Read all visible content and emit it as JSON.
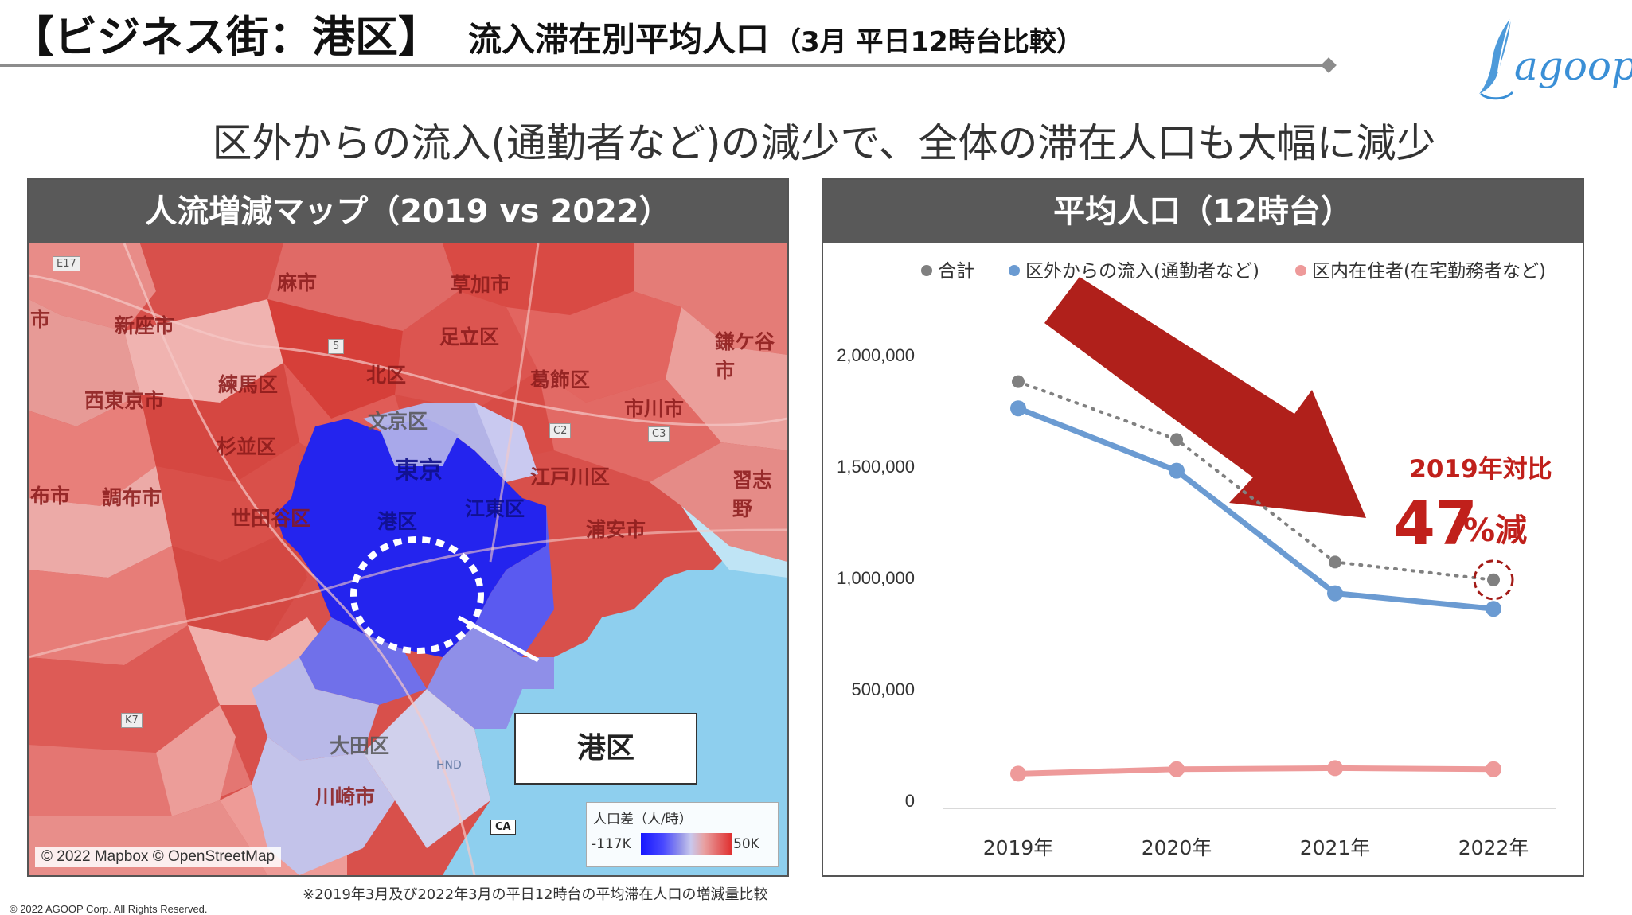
{
  "header": {
    "bracket_title": "【ビジネス街：港区】",
    "main_title": "流入滞在別平均人口",
    "sub_title": "（3月 平日12時台比較）",
    "logo_text": "agoop"
  },
  "headline": "区外からの流入(通勤者など)の減少で、全体の滞在人口も大幅に減少",
  "map_panel": {
    "title": "人流増減マップ（2019 vs 2022）",
    "labels": [
      "草加市",
      "足立区",
      "新座市",
      "北区",
      "葛飾区",
      "練馬区",
      "西東京市",
      "文京区",
      "市川市",
      "杉並区",
      "東京",
      "江戸川区",
      "調布市",
      "世田谷区",
      "港区",
      "江東区",
      "浦安市",
      "大田区",
      "川崎市",
      "鎌ケ谷市",
      "習志野",
      "麻市",
      "市",
      "布市"
    ],
    "road_labels": [
      "E17",
      "5",
      "C2",
      "C3",
      "K7",
      "CA"
    ],
    "airport_label": "HND",
    "callout": "港区",
    "legend_title": "人口差（人/時）",
    "legend_min": "-117K",
    "legend_max": "50K",
    "attribution": "© 2022 Mapbox © OpenStreetMap",
    "colors": {
      "increase": "#d9453f",
      "decrease": "#2a2ae6",
      "sea": "#8ecfee"
    }
  },
  "chart_panel": {
    "title": "平均人口（12時台）"
  },
  "chart_data": {
    "type": "line",
    "x": [
      "2019年",
      "2020年",
      "2021年",
      "2022年"
    ],
    "series": [
      {
        "name": "合計",
        "values": [
          1880000,
          1620000,
          1070000,
          990000
        ],
        "color": "#808080",
        "style": "dotted"
      },
      {
        "name": "区外からの流入(通勤者など)",
        "values": [
          1760000,
          1480000,
          930000,
          860000
        ],
        "color": "#6b9bd2",
        "style": "solid"
      },
      {
        "name": "区内在住者(在宅勤務者など)",
        "values": [
          120000,
          140000,
          145000,
          140000
        ],
        "color": "#ee9a9a",
        "style": "solid"
      }
    ],
    "y_ticks": [
      "2,000,000",
      "1,500,000",
      "1,000,000",
      "500,000",
      "0"
    ],
    "y_tick_values": [
      2000000,
      1500000,
      1000000,
      500000,
      0
    ],
    "ylim": [
      0,
      2000000
    ],
    "legend_position": "top",
    "annotation": {
      "line1": "2019年対比",
      "big": "47",
      "unit": "%減",
      "color": "#c0201b"
    }
  },
  "footnote": "※2019年3月及び2022年3月の平日12時台の平均滞在人口の増減量比較",
  "copyright": "© 2022 AGOOP Corp. All Rights Reserved."
}
